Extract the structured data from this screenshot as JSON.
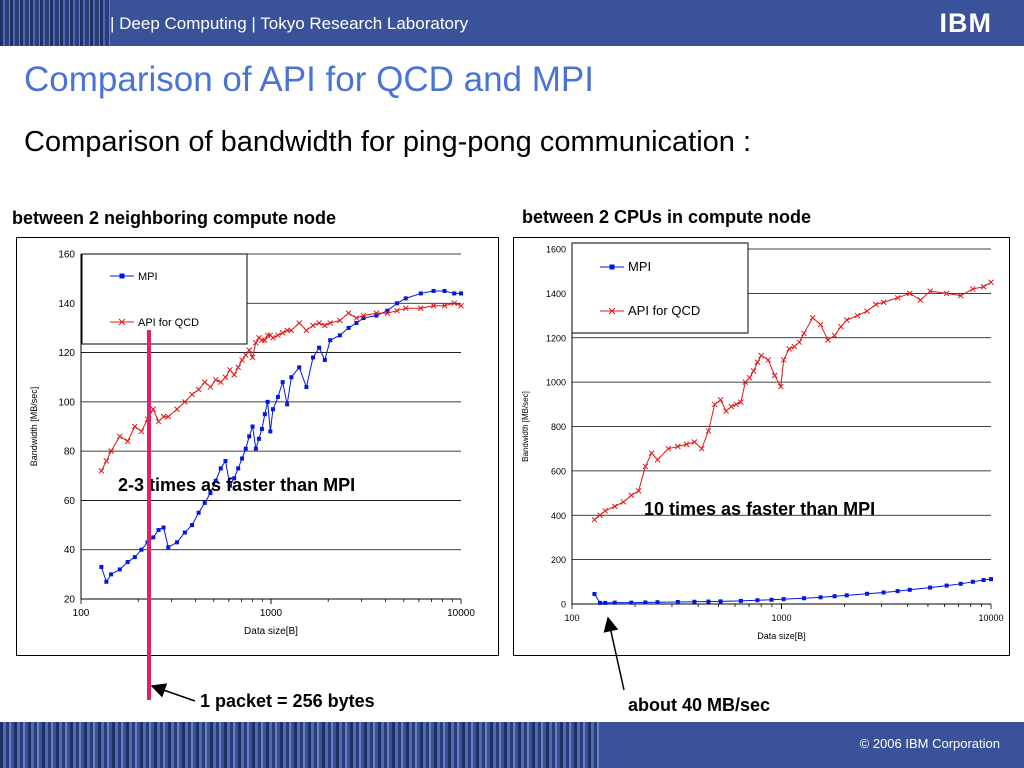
{
  "header": {
    "title": "| Deep Computing | Tokyo Research Laboratory",
    "logo": "IBM"
  },
  "slide": {
    "title": "Comparison of API for QCD and MPI",
    "subtitle": "Comparison of bandwidth for ping-pong communication :"
  },
  "left_chart_heading": "between 2 neighboring compute node",
  "right_chart_heading": "between 2 CPUs in compute node",
  "annotations": {
    "left": "2-3 times as faster than MPI",
    "right": "10 times as faster than MPI",
    "packet": "1 packet = 256 bytes",
    "mpi_level": "about 40 MB/sec"
  },
  "footer": {
    "copyright": "© 2006 IBM Corporation"
  },
  "colors": {
    "mpi": "#0018e0",
    "qcd": "#e01818",
    "marker_line": "#e0206a",
    "brand": "#39529a"
  },
  "chart_data": [
    {
      "type": "line",
      "title": "between 2 neighboring compute node",
      "xlabel": "Data size[B]",
      "ylabel": "Bandwidth [MB/sec]",
      "xscale": "log",
      "xlim": [
        100,
        10000
      ],
      "ylim": [
        20,
        160
      ],
      "xticks": [
        "100",
        "1000",
        "10000"
      ],
      "yticks": [
        "20",
        "40",
        "60",
        "80",
        "100",
        "120",
        "140",
        "160"
      ],
      "grid": "horizontal",
      "legend_position": "top-left",
      "series": [
        {
          "name": "MPI",
          "color": "#0018e0",
          "marker": "square",
          "x": [
            128,
            136,
            144,
            160,
            176,
            192,
            208,
            224,
            240,
            256,
            272,
            288,
            320,
            352,
            384,
            416,
            448,
            480,
            512,
            544,
            576,
            608,
            640,
            672,
            704,
            736,
            768,
            800,
            832,
            864,
            896,
            928,
            960,
            992,
            1024,
            1088,
            1152,
            1216,
            1280,
            1408,
            1536,
            1664,
            1792,
            1920,
            2048,
            2304,
            2560,
            2816,
            3072,
            3584,
            4096,
            4608,
            5120,
            6144,
            7168,
            8192,
            9216,
            10000
          ],
          "y": [
            33,
            27,
            30,
            32,
            35,
            37,
            40,
            43,
            45,
            48,
            49,
            41,
            43,
            47,
            50,
            55,
            59,
            63,
            68,
            73,
            76,
            66,
            69,
            73,
            77,
            81,
            86,
            90,
            81,
            85,
            89,
            95,
            100,
            88,
            97,
            102,
            108,
            99,
            110,
            114,
            106,
            118,
            122,
            117,
            125,
            127,
            130,
            132,
            134,
            135,
            137,
            140,
            142,
            144,
            145,
            145,
            144,
            144
          ]
        },
        {
          "name": "API for QCD",
          "color": "#e01818",
          "marker": "x",
          "x": [
            128,
            136,
            144,
            160,
            176,
            192,
            208,
            224,
            240,
            256,
            272,
            288,
            320,
            352,
            384,
            416,
            448,
            480,
            512,
            544,
            576,
            608,
            640,
            672,
            704,
            736,
            768,
            800,
            832,
            864,
            896,
            928,
            960,
            992,
            1024,
            1088,
            1152,
            1216,
            1280,
            1408,
            1536,
            1664,
            1792,
            1920,
            2048,
            2304,
            2560,
            2816,
            3072,
            3584,
            4096,
            4608,
            5120,
            6144,
            7168,
            8192,
            9216,
            10000
          ],
          "y": [
            72,
            76,
            80,
            86,
            84,
            90,
            88,
            93,
            97,
            92,
            94,
            94,
            97,
            100,
            103,
            105,
            108,
            106,
            109,
            108,
            110,
            113,
            111,
            114,
            117,
            119,
            121,
            118,
            124,
            126,
            125,
            125,
            127,
            127,
            126,
            127,
            128,
            129,
            129,
            132,
            129,
            131,
            132,
            131,
            132,
            133,
            136,
            134,
            135,
            136,
            136,
            137,
            138,
            138,
            139,
            139,
            140,
            139
          ]
        }
      ]
    },
    {
      "type": "line",
      "title": "between 2 CPUs in compute node",
      "xlabel": "Data size[B]",
      "ylabel": "Bandwidth [MB/sec]",
      "xscale": "log",
      "xlim": [
        100,
        10000
      ],
      "ylim": [
        0,
        1600
      ],
      "xticks": [
        "100",
        "1000",
        "10000"
      ],
      "yticks": [
        "0",
        "200",
        "400",
        "600",
        "800",
        "1000",
        "1200",
        "1400",
        "1600"
      ],
      "grid": "horizontal",
      "legend_position": "top-left",
      "series": [
        {
          "name": "MPI",
          "color": "#0018e0",
          "marker": "square",
          "x": [
            128,
            136,
            144,
            160,
            192,
            224,
            256,
            320,
            384,
            448,
            512,
            640,
            768,
            896,
            1024,
            1280,
            1536,
            1792,
            2048,
            2560,
            3072,
            3584,
            4096,
            5120,
            6144,
            7168,
            8192,
            9216,
            10000
          ],
          "y": [
            45,
            5,
            5,
            6,
            6,
            7,
            8,
            9,
            10,
            11,
            12,
            14,
            17,
            19,
            22,
            26,
            30,
            35,
            39,
            46,
            52,
            58,
            64,
            74,
            83,
            91,
            100,
            108,
            112
          ]
        },
        {
          "name": "API for QCD",
          "color": "#e01818",
          "marker": "x",
          "x": [
            128,
            136,
            144,
            160,
            176,
            192,
            208,
            224,
            240,
            256,
            288,
            320,
            352,
            384,
            416,
            448,
            480,
            512,
            544,
            576,
            608,
            640,
            672,
            704,
            736,
            768,
            800,
            864,
            928,
            992,
            1024,
            1088,
            1152,
            1216,
            1280,
            1408,
            1536,
            1664,
            1792,
            1920,
            2048,
            2304,
            2560,
            2816,
            3072,
            3584,
            4096,
            4608,
            5120,
            6144,
            7168,
            8192,
            9216,
            10000
          ],
          "y": [
            380,
            400,
            420,
            440,
            460,
            490,
            510,
            620,
            680,
            650,
            700,
            710,
            720,
            730,
            700,
            780,
            900,
            920,
            870,
            890,
            900,
            910,
            1000,
            1020,
            1050,
            1090,
            1120,
            1100,
            1030,
            980,
            1100,
            1150,
            1160,
            1180,
            1220,
            1290,
            1260,
            1190,
            1210,
            1250,
            1280,
            1300,
            1320,
            1350,
            1360,
            1380,
            1400,
            1370,
            1410,
            1400,
            1390,
            1420,
            1430,
            1450
          ]
        }
      ]
    }
  ]
}
